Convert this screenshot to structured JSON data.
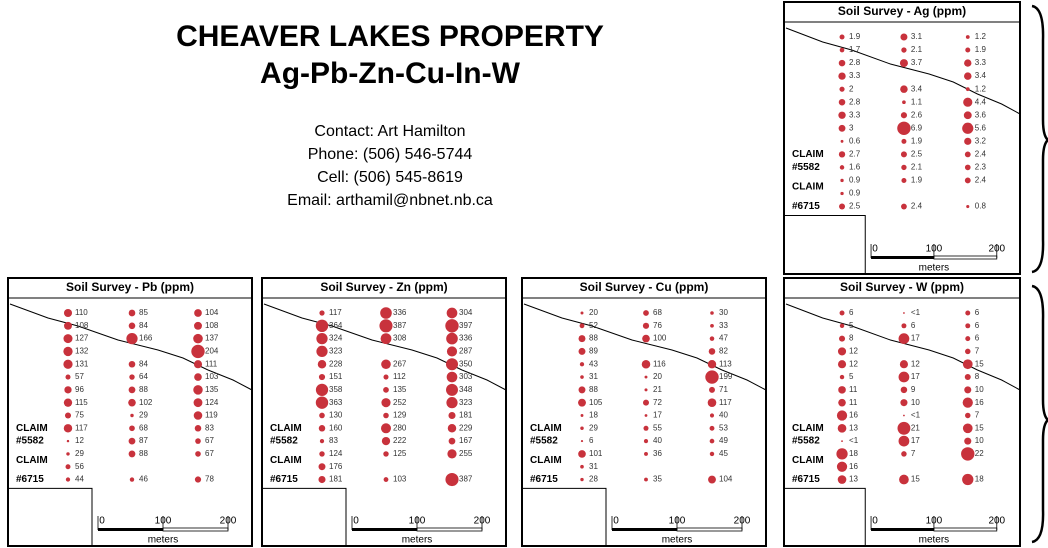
{
  "header": {
    "title": "CHEAVER LAKES PROPERTY",
    "subtitle": "Ag-Pb-Zn-Cu-In-W"
  },
  "contact": [
    "Contact: Art Hamilton",
    "Phone: (506) 546-5744",
    "Cell: (506) 545-8619",
    "Email: arthamil@nbnet.nb.ca"
  ],
  "panels": [
    {
      "title": "Soil Survey - Ag (ppm)",
      "columns": [
        [
          1.9,
          1.7,
          2.8,
          3.3,
          2,
          2.8,
          3.3,
          3,
          0.6,
          2.7,
          1.6,
          0.9,
          0.9,
          2.5
        ],
        [
          3.1,
          2.1,
          3.7,
          null,
          3.4,
          1.1,
          2.6,
          6.9,
          1.9,
          2.5,
          2.1,
          1.9,
          null,
          2.4
        ],
        [
          1.2,
          1.9,
          3.3,
          3.4,
          1.2,
          4.4,
          3.6,
          5.6,
          3.2,
          2.4,
          2.3,
          2.4,
          null,
          0.8
        ]
      ],
      "claims": [
        "CLAIM",
        "#5582",
        "CLAIM",
        "#6715"
      ],
      "scale": {
        "ticks": [
          0,
          100,
          200
        ],
        "unit": "meters"
      }
    },
    {
      "title": "Soil Survey - Pb (ppm)",
      "columns": [
        [
          110,
          108,
          127,
          132,
          131,
          57,
          96,
          115,
          75,
          117,
          12,
          29,
          56,
          44
        ],
        [
          85,
          84,
          166,
          null,
          84,
          64,
          88,
          102,
          29,
          68,
          87,
          88,
          null,
          46
        ],
        [
          104,
          108,
          137,
          204,
          111,
          103,
          135,
          124,
          119,
          83,
          67,
          67,
          null,
          78
        ]
      ],
      "claims": [
        "CLAIM",
        "#5582",
        "CLAIM",
        "#6715"
      ],
      "scale": {
        "ticks": [
          0,
          100,
          200
        ],
        "unit": "meters"
      }
    },
    {
      "title": "Soil Survey - Zn (ppm)",
      "columns": [
        [
          117,
          364,
          324,
          323,
          228,
          151,
          358,
          363,
          130,
          160,
          83,
          124,
          176,
          181
        ],
        [
          336,
          387,
          308,
          null,
          267,
          112,
          135,
          252,
          129,
          280,
          222,
          125,
          null,
          103
        ],
        [
          304,
          397,
          336,
          287,
          350,
          303,
          348,
          323,
          181,
          229,
          167,
          255,
          null,
          387
        ]
      ],
      "claims": [
        "CLAIM",
        "#5582",
        "CLAIM",
        "#6715"
      ],
      "scale": {
        "ticks": [
          0,
          100,
          200
        ],
        "unit": "meters"
      }
    },
    {
      "title": "Soil Survey - Cu (ppm)",
      "columns": [
        [
          20,
          52,
          88,
          89,
          43,
          31,
          88,
          105,
          18,
          29,
          6,
          101,
          31,
          28
        ],
        [
          68,
          76,
          100,
          null,
          116,
          20,
          21,
          72,
          17,
          55,
          40,
          36,
          null,
          35
        ],
        [
          30,
          33,
          47,
          82,
          113,
          199,
          71,
          117,
          40,
          53,
          49,
          45,
          null,
          104
        ]
      ],
      "claims": [
        "CLAIM",
        "#5582",
        "CLAIM",
        "#6715"
      ],
      "scale": {
        "ticks": [
          0,
          100,
          200
        ],
        "unit": "meters"
      }
    },
    {
      "title": "Soil Survey - W (ppm)",
      "columns": [
        [
          6,
          5,
          8,
          12,
          12,
          5,
          11,
          11,
          16,
          13,
          "<1",
          18,
          16,
          13
        ],
        [
          "<1",
          6,
          17,
          null,
          12,
          17,
          9,
          10,
          "<1",
          21,
          17,
          7,
          null,
          15
        ],
        [
          6,
          6,
          6,
          7,
          15,
          8,
          10,
          16,
          7,
          15,
          10,
          22,
          null,
          18
        ]
      ],
      "claims": [
        "CLAIM",
        "#5582",
        "CLAIM",
        "#6715"
      ],
      "scale": {
        "ticks": [
          0,
          100,
          200
        ],
        "unit": "meters"
      }
    }
  ]
}
